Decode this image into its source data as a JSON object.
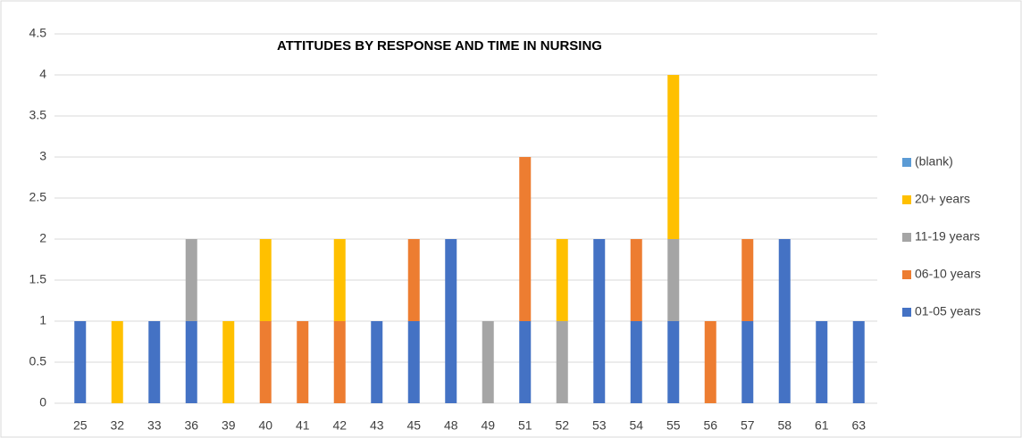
{
  "chart_data": {
    "type": "stacked_bar",
    "title": "ATTITUDES BY RESPONSE AND TIME IN NURSING",
    "categories": [
      "25",
      "32",
      "33",
      "36",
      "39",
      "40",
      "41",
      "42",
      "43",
      "45",
      "48",
      "49",
      "51",
      "52",
      "53",
      "54",
      "55",
      "56",
      "57",
      "58",
      "61",
      "63"
    ],
    "series": [
      {
        "name": "01-05 years",
        "color": "#4472c4",
        "values": [
          1,
          null,
          1,
          1,
          null,
          null,
          null,
          null,
          1,
          1,
          2,
          null,
          1,
          null,
          2,
          1,
          1,
          null,
          1,
          2,
          1,
          1
        ]
      },
      {
        "name": "06-10 years",
        "color": "#ed7d31",
        "values": [
          null,
          null,
          null,
          null,
          null,
          1,
          1,
          1,
          null,
          1,
          null,
          null,
          2,
          null,
          null,
          1,
          null,
          1,
          1,
          null,
          null,
          null
        ]
      },
      {
        "name": "11-19 years",
        "color": "#a5a5a5",
        "values": [
          null,
          null,
          null,
          1,
          null,
          null,
          null,
          null,
          null,
          null,
          null,
          1,
          null,
          1,
          null,
          null,
          1,
          null,
          null,
          null,
          null,
          null
        ]
      },
      {
        "name": "20+ years",
        "color": "#ffc000",
        "values": [
          null,
          1,
          null,
          null,
          1,
          1,
          null,
          1,
          null,
          null,
          null,
          null,
          null,
          1,
          null,
          null,
          2,
          null,
          null,
          null,
          null,
          null
        ]
      },
      {
        "name": "(blank)",
        "color": "#5b9bd5",
        "values": [
          null,
          null,
          null,
          null,
          null,
          null,
          null,
          null,
          null,
          null,
          null,
          null,
          null,
          null,
          null,
          null,
          null,
          null,
          null,
          null,
          null,
          null
        ]
      }
    ],
    "ylim": [
      0,
      4.5
    ],
    "yticks": [
      0,
      0.5,
      1,
      1.5,
      2,
      2.5,
      3,
      3.5,
      4,
      4.5
    ],
    "grid": true,
    "legend": "right"
  }
}
